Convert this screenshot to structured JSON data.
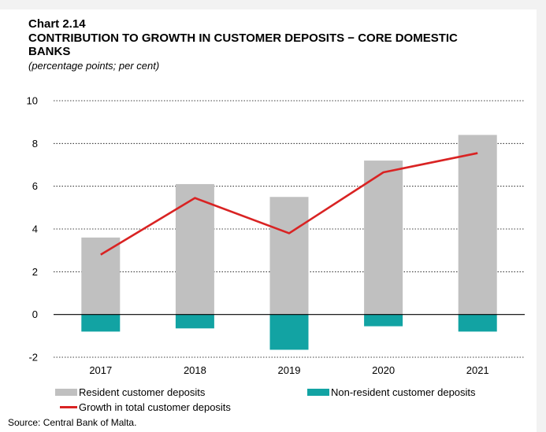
{
  "header": {
    "chart_number": "Chart 2.14",
    "title": "CONTRIBUTION TO GROWTH IN CUSTOMER DEPOSITS − CORE DOMESTIC BANKS",
    "subtitle": "(percentage points; per cent)"
  },
  "footer": {
    "source": "Source: Central Bank of Malta."
  },
  "colors": {
    "resident": "#c0c0c0",
    "non_resident": "#12a3a3",
    "total": "#d92323",
    "grid": "#000000"
  },
  "chart_data": {
    "type": "bar",
    "stacked": true,
    "categories": [
      "2017",
      "2018",
      "2019",
      "2020",
      "2021"
    ],
    "ylim": [
      -2,
      10
    ],
    "yticks": [
      -2,
      0,
      2,
      4,
      6,
      8,
      10
    ],
    "ytick_labels": [
      "-2",
      "0",
      "2",
      "4",
      "6",
      "8",
      "10"
    ],
    "grid": "horizontal dotted",
    "legend_position": "bottom",
    "series": [
      {
        "name": "Resident customer deposits",
        "kind": "bar",
        "values": [
          3.6,
          6.1,
          5.5,
          7.2,
          8.4
        ]
      },
      {
        "name": "Non-resident customer deposits",
        "kind": "bar",
        "values": [
          -0.8,
          -0.65,
          -1.65,
          -0.55,
          -0.8
        ]
      },
      {
        "name": "Growth in total customer deposits",
        "kind": "line",
        "values": [
          2.8,
          5.45,
          3.8,
          6.65,
          7.55
        ]
      }
    ]
  }
}
